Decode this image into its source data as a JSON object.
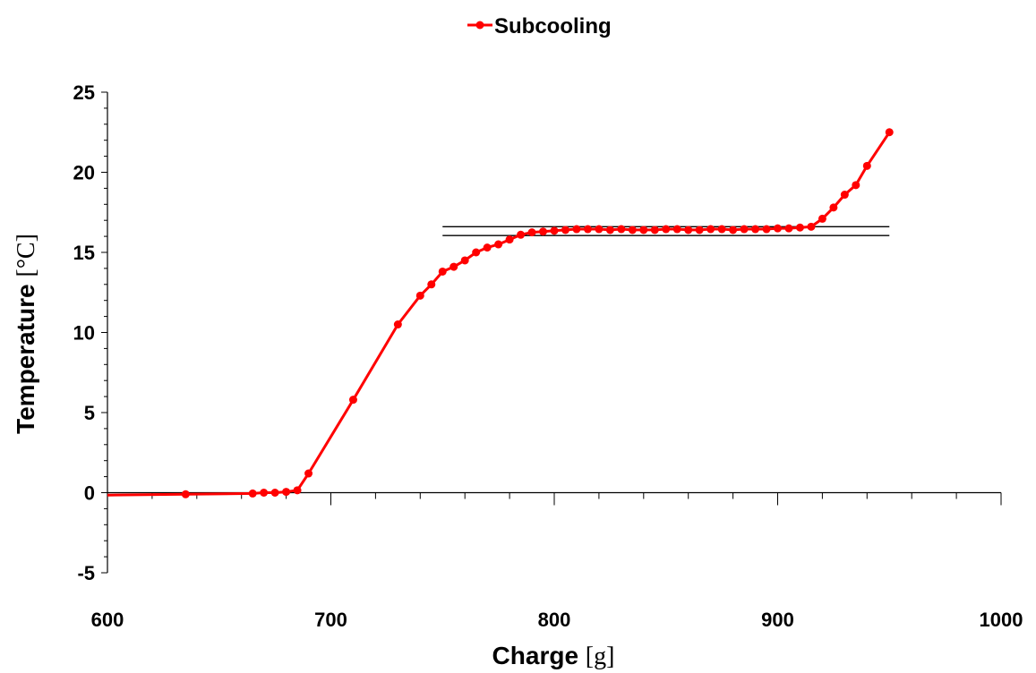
{
  "chart_data": {
    "type": "line",
    "title": "",
    "xlabel": "Charge",
    "xlabel_unit": "[g]",
    "ylabel": "Temperature",
    "ylabel_unit": "[°C]",
    "xlim": [
      600,
      1000
    ],
    "ylim": [
      -5,
      25
    ],
    "x_ticks": [
      "600",
      "700",
      "800",
      "900",
      "1000"
    ],
    "y_ticks": [
      "-5",
      "0",
      "5",
      "10",
      "15",
      "20",
      "25"
    ],
    "grid": false,
    "legend": {
      "position": "top-center",
      "entries": [
        "Subcooling"
      ]
    },
    "series": [
      {
        "name": "Subcooling",
        "color": "#ff0000",
        "marker": "circle",
        "x": [
          600,
          635,
          665,
          670,
          675,
          680,
          685,
          690,
          710,
          730,
          740,
          745,
          750,
          755,
          760,
          765,
          770,
          775,
          780,
          785,
          790,
          795,
          800,
          805,
          810,
          815,
          820,
          825,
          830,
          835,
          840,
          845,
          850,
          855,
          860,
          865,
          870,
          875,
          880,
          885,
          890,
          895,
          900,
          905,
          910,
          915,
          920,
          925,
          930,
          935,
          940,
          950
        ],
        "y": [
          -0.15,
          -0.1,
          -0.05,
          0,
          0,
          0.05,
          0.15,
          1.2,
          5.8,
          10.5,
          12.3,
          13,
          13.8,
          14.1,
          14.5,
          15,
          15.3,
          15.5,
          15.8,
          16.1,
          16.25,
          16.3,
          16.35,
          16.4,
          16.45,
          16.45,
          16.45,
          16.4,
          16.45,
          16.4,
          16.4,
          16.4,
          16.45,
          16.45,
          16.4,
          16.4,
          16.45,
          16.45,
          16.4,
          16.45,
          16.45,
          16.45,
          16.5,
          16.5,
          16.55,
          16.6,
          17.1,
          17.8,
          18.6,
          19.2,
          20.4,
          22.5
        ]
      }
    ],
    "reference_lines": [
      {
        "x": [
          750,
          950
        ],
        "y": [
          16.6,
          16.6
        ],
        "color": "#000000"
      },
      {
        "x": [
          750,
          950
        ],
        "y": [
          16.05,
          16.05
        ],
        "color": "#000000"
      }
    ]
  }
}
